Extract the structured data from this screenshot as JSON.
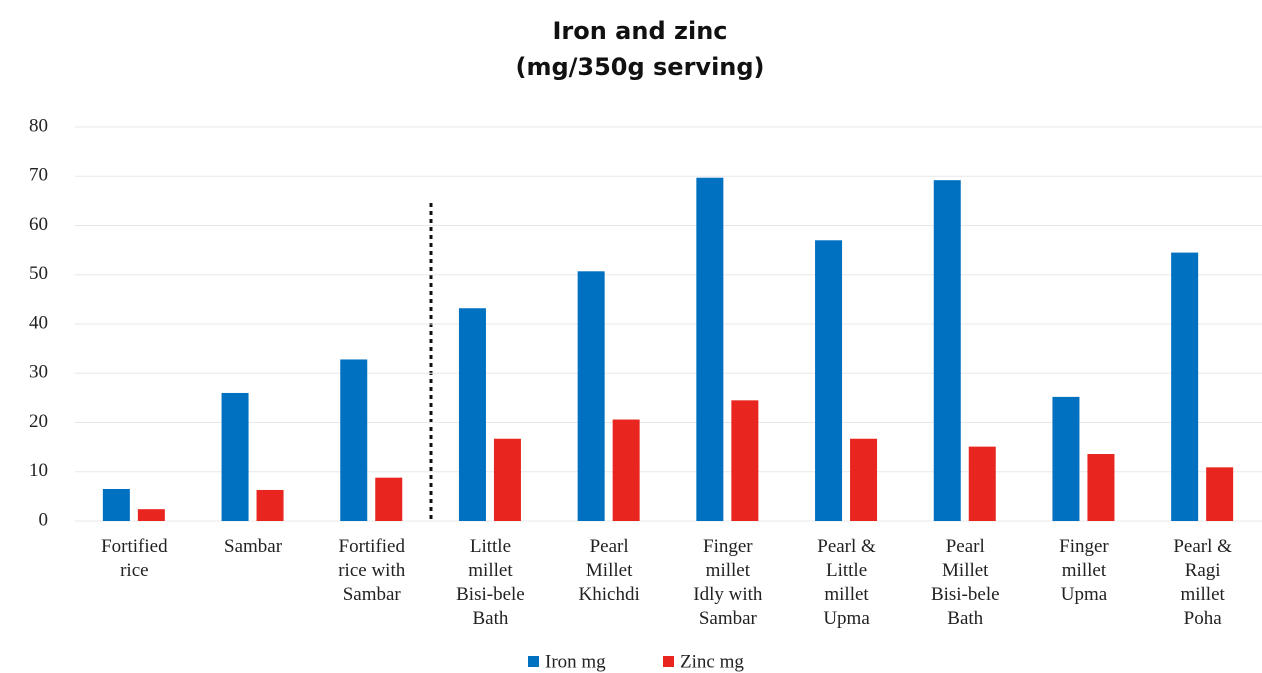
{
  "chart_data": {
    "type": "bar",
    "title": "Iron and zinc",
    "subtitle": "(mg/350g serving)",
    "categories": [
      "Fortified\nrice",
      "Sambar",
      "Fortified\nrice with\nSambar",
      "Little\nmillet\nBisi-bele\nBath",
      "Pearl\nMillet\nKhichdi",
      "Finger\nmillet\nIdly with\nSambar",
      "Pearl &\nLittle\nmillet\nUpma",
      "Pearl\nMillet\nBisi-bele\nBath",
      "Finger\nmillet\nUpma",
      "Pearl &\nRagi\nmillet\nPoha"
    ],
    "series": [
      {
        "name": "Iron mg",
        "color": "#0070c0",
        "values": [
          6.5,
          26,
          32.8,
          43.2,
          50.7,
          69.7,
          57,
          69.2,
          25.2,
          54.5
        ]
      },
      {
        "name": "Zinc mg",
        "color": "#e8251f",
        "values": [
          2.4,
          6.3,
          8.8,
          16.7,
          20.6,
          24.5,
          16.7,
          15.1,
          13.6,
          10.9
        ]
      }
    ],
    "ylim": [
      0,
      80
    ],
    "yticks": [
      0,
      10,
      20,
      30,
      40,
      50,
      60,
      70,
      80
    ],
    "grid": true,
    "legend": "bottom"
  }
}
